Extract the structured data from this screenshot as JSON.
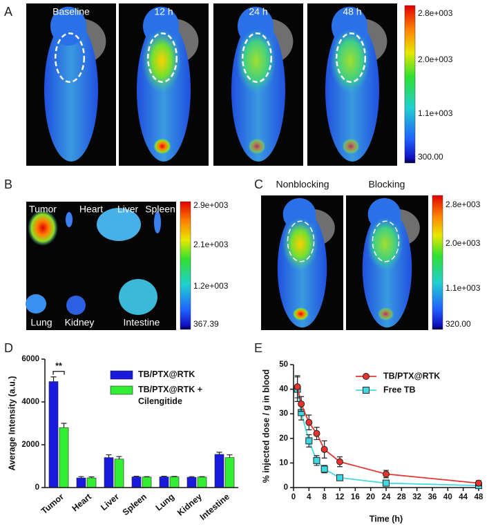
{
  "panels": {
    "A": {
      "letter": "A",
      "labels": [
        "Baseline",
        "12 h",
        "24 h",
        "48 h"
      ],
      "colorbar": [
        "2.8e+003",
        "2.0e+003",
        "1.1e+003",
        "300.00"
      ]
    },
    "B": {
      "letter": "B",
      "labels": [
        "Tumor",
        "Heart",
        "Liver",
        "Spleen",
        "Lung",
        "Kidney",
        "Intestine"
      ],
      "colorbar": [
        "2.9e+003",
        "2.1e+003",
        "1.2e+003",
        "367.39"
      ]
    },
    "C": {
      "letter": "C",
      "labels": [
        "Nonblocking",
        "Blocking"
      ],
      "colorbar": [
        "2.8e+003",
        "2.0e+003",
        "1.1e+003",
        "320.00"
      ]
    },
    "D": {
      "letter": "D"
    },
    "E": {
      "letter": "E"
    }
  },
  "chart_data": [
    {
      "type": "bar",
      "ylabel": "Average Intensity (a.u.)",
      "categories": [
        "Tumor",
        "Heart",
        "Liver",
        "Spleen",
        "Lung",
        "Kidney",
        "Intestine"
      ],
      "series": [
        {
          "name": "TB/PTX@RTK",
          "color": "#1a1adf",
          "values": [
            4950,
            450,
            1400,
            500,
            500,
            480,
            1550
          ],
          "errors": [
            220,
            60,
            130,
            30,
            30,
            30,
            100
          ]
        },
        {
          "name": "TB/PTX@RTK + Cilengitide",
          "color": "#33ee33",
          "values": [
            2800,
            450,
            1330,
            490,
            500,
            490,
            1400
          ],
          "errors": [
            200,
            50,
            120,
            20,
            20,
            20,
            130
          ]
        }
      ],
      "ylim": [
        0,
        6000
      ],
      "yticks": [
        0,
        2000,
        4000,
        6000
      ],
      "annotation": "**"
    },
    {
      "type": "line",
      "xlabel": "Time (h)",
      "ylabel": "% injected dose / g in blood",
      "series": [
        {
          "name": "TB/PTX@RTK",
          "color": "#e8332f",
          "marker": "circle",
          "x": [
            1,
            2,
            4,
            6,
            8,
            12,
            24,
            48
          ],
          "values": [
            41,
            34,
            26.5,
            22,
            15.5,
            10.5,
            5.5,
            1.8
          ],
          "errors": [
            4.5,
            3,
            3,
            2.5,
            3.5,
            2,
            1.5,
            1
          ]
        },
        {
          "name": "Free TB",
          "color": "#3fd8e0",
          "marker": "square",
          "x": [
            1,
            2,
            4,
            6,
            8,
            12,
            24,
            48
          ],
          "values": [
            40,
            30.5,
            19,
            11,
            7.5,
            4,
            1.8,
            0.8
          ],
          "errors": [
            5,
            3,
            2.5,
            2,
            1.5,
            0.8,
            0.5,
            0.3
          ]
        }
      ],
      "xlim": [
        0,
        48
      ],
      "xticks": [
        0,
        4,
        8,
        12,
        16,
        20,
        24,
        28,
        32,
        36,
        40,
        44,
        48
      ],
      "ylim": [
        0,
        50
      ],
      "yticks": [
        0,
        10,
        20,
        30,
        40,
        50
      ]
    }
  ]
}
